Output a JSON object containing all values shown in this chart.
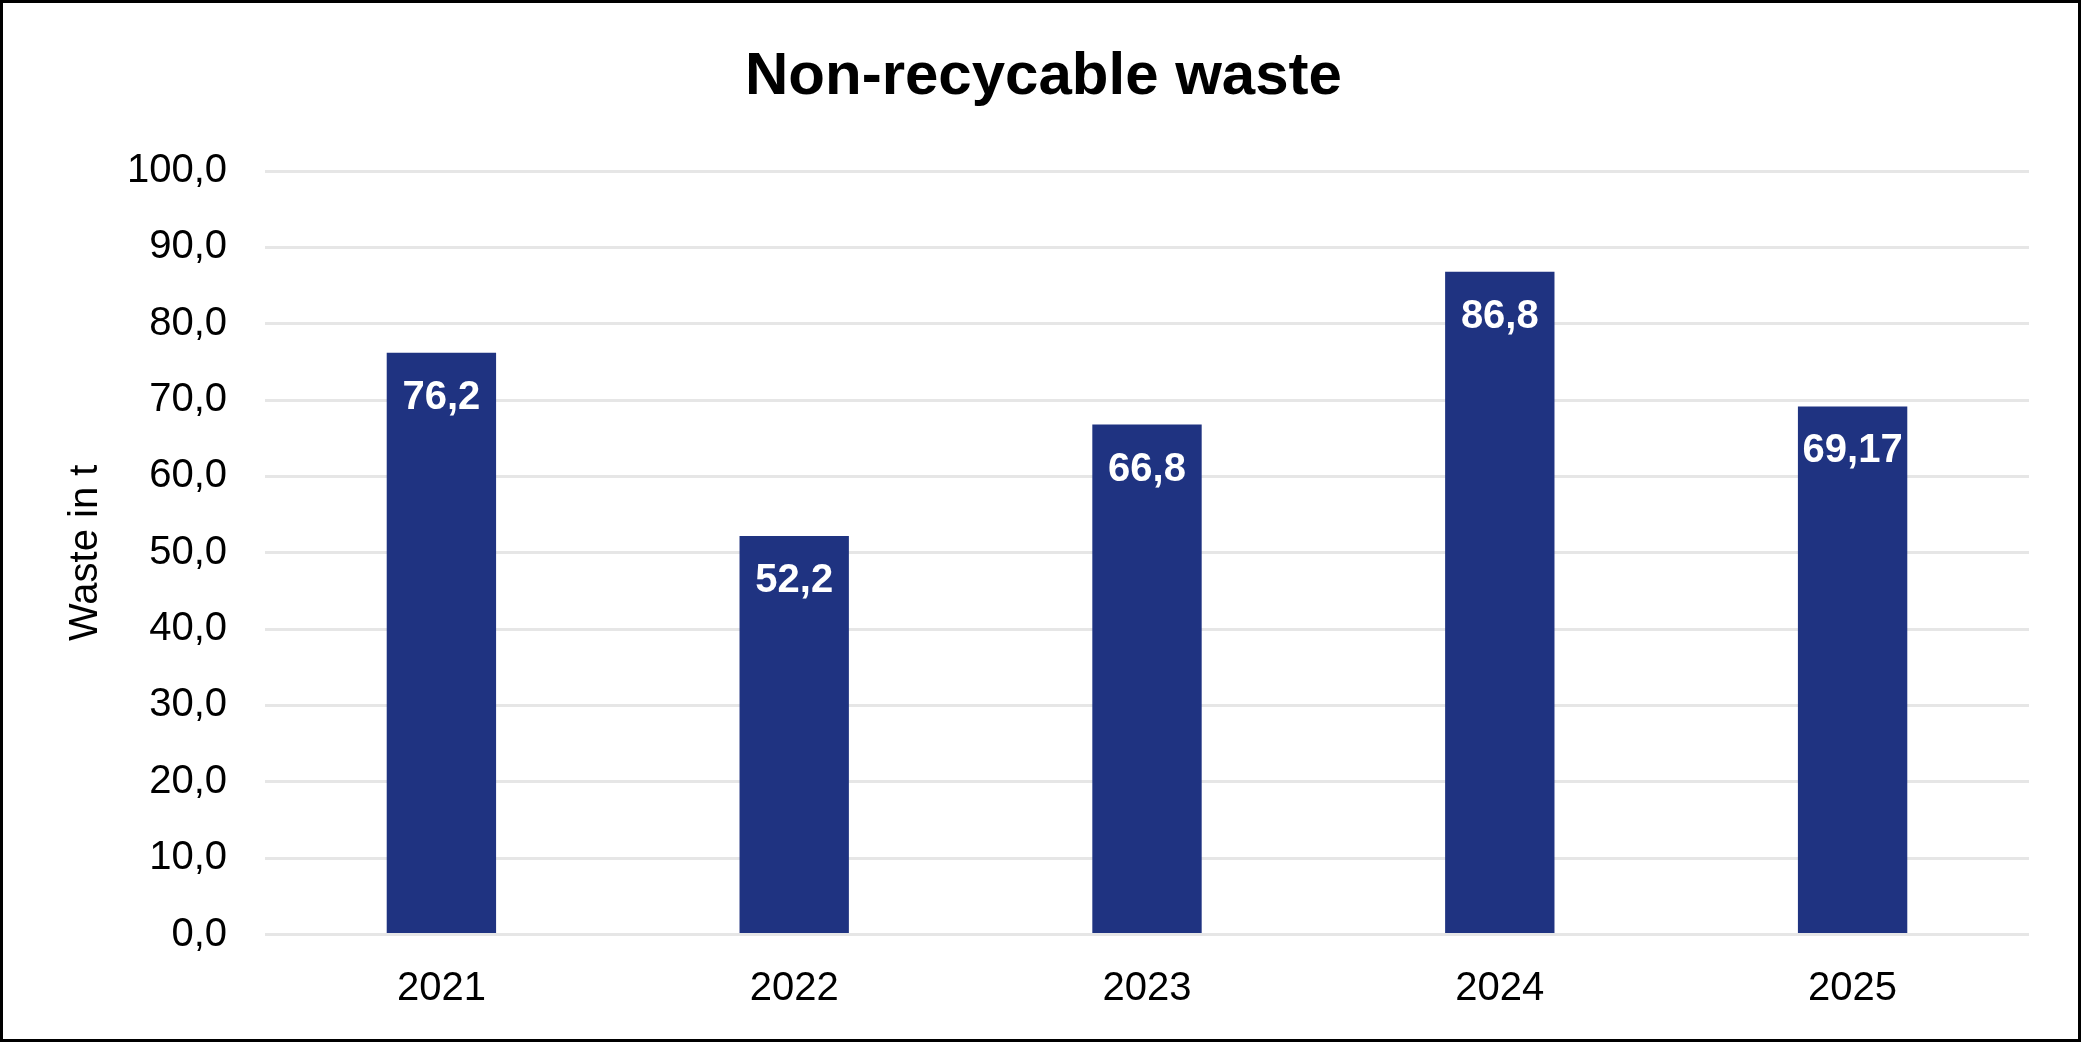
{
  "chart_data": {
    "type": "bar",
    "title": "Non-recycable waste",
    "ylabel": "Waste in t",
    "categories": [
      "2021",
      "2022",
      "2023",
      "2024",
      "2025"
    ],
    "values": [
      76.2,
      52.2,
      66.8,
      86.8,
      69.17
    ],
    "value_labels": [
      "76,2",
      "52,2",
      "66,8",
      "86,8",
      "69,17"
    ],
    "color": "#1f3381",
    "ylim": [
      0,
      100
    ],
    "yticks": [
      {
        "value": 0,
        "label": "0,0"
      },
      {
        "value": 10,
        "label": "10,0"
      },
      {
        "value": 20,
        "label": "20,0"
      },
      {
        "value": 30,
        "label": "30,0"
      },
      {
        "value": 40,
        "label": "40,0"
      },
      {
        "value": 50,
        "label": "50,0"
      },
      {
        "value": 60,
        "label": "60,0"
      },
      {
        "value": 70,
        "label": "70,0"
      },
      {
        "value": 80,
        "label": "80,0"
      },
      {
        "value": 90,
        "label": "90,0"
      },
      {
        "value": 100,
        "label": "100,0"
      }
    ],
    "grid": "y"
  }
}
